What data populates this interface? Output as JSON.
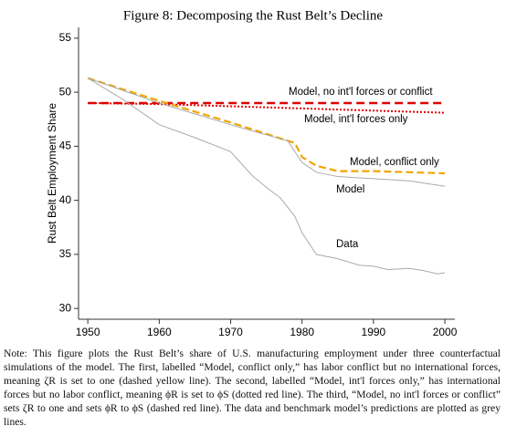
{
  "chart_data": {
    "type": "line",
    "title": "Figure 8: Decomposing the Rust Belt’s Decline",
    "y_label": "Rust Belt Employment Share",
    "xlim": [
      1948.7,
      2001.4
    ],
    "xticks": [
      1950,
      1960,
      1970,
      1980,
      1990,
      2000
    ],
    "ylim": [
      29,
      56
    ],
    "yticks": [
      30,
      35,
      40,
      45,
      50,
      55
    ],
    "series": [
      {
        "name": "Model, no int'l forces or conflict",
        "color": "#e00000",
        "dash": "dashed",
        "x": [
          1950,
          2000
        ],
        "values": [
          49,
          49
        ]
      },
      {
        "name": "Model, int'l forces only",
        "color": "#e00000",
        "dash": "dotted",
        "x": [
          1950,
          1960,
          1970,
          1980,
          1990,
          2000
        ],
        "values": [
          49,
          48.9,
          48.7,
          48.5,
          48.3,
          48.1
        ]
      },
      {
        "name": "Model, conflict only",
        "color": "#f0a500",
        "dash": "longdash",
        "x": [
          1950,
          1960,
          1970,
          1979,
          1980,
          1982,
          1985,
          1990,
          1995,
          2000
        ],
        "values": [
          51.3,
          49.2,
          47.2,
          45.3,
          44,
          43.2,
          42.7,
          42.7,
          42.6,
          42.5
        ]
      },
      {
        "name": "Model",
        "color": "#aaaaaa",
        "dash": "solid",
        "x": [
          1950,
          1960,
          1970,
          1978,
          1980,
          1982,
          1985,
          1990,
          1995,
          2000
        ],
        "values": [
          51.3,
          49,
          47,
          45.5,
          43.5,
          42.6,
          42.2,
          42,
          41.8,
          41.3
        ]
      },
      {
        "name": "Data",
        "color": "#aaaaaa",
        "dash": "solid",
        "x": [
          1950,
          1955,
          1960,
          1965,
          1970,
          1973,
          1975,
          1977,
          1979,
          1980,
          1982,
          1985,
          1988,
          1990,
          1992,
          1995,
          1997,
          1999,
          2000
        ],
        "values": [
          51.3,
          49.3,
          47,
          45.8,
          44.5,
          42.3,
          41.2,
          40.2,
          38.5,
          37,
          35,
          34.6,
          34,
          33.9,
          33.6,
          33.7,
          33.5,
          33.2,
          33.3
        ]
      }
    ]
  },
  "note": "Note: This figure plots the Rust Belt’s share of U.S. manufacturing employment under three counterfactual simulations of the model. The first, labelled “Model, conflict only,” has labor conflict but no international forces, meaning ζR is set to one (dashed yellow line). The second, labelled “Model, int'l forces only,” has international forces but no labor conflict, meaning ϕR is set to ϕS (dotted red line). The third, “Model, no int'l forces or conflict” sets ζR to one and sets ϕR to ϕS (dashed red line). The data and benchmark model’s predictions are plotted as grey lines."
}
